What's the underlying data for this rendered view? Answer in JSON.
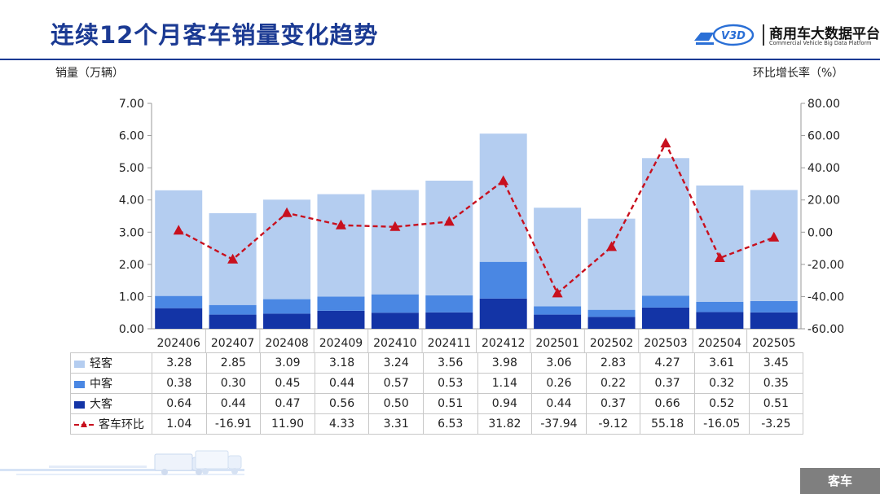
{
  "header": {
    "title": "连续12个月客车销量变化趋势",
    "logo": {
      "mark_text": "V3D",
      "name": "商用车大数据平台",
      "subtitle": "Commercial Vehicle Big Data Platform"
    }
  },
  "footer": {
    "tag": "客车"
  },
  "colors": {
    "title": "#1b3a93",
    "light": "#b4cdf0",
    "medium": "#4a87e3",
    "heavy": "#1334a6",
    "mom_line": "#c8101e",
    "tag_bg": "#7f7f7f"
  },
  "chart_data": {
    "type": "bar",
    "stacked": true,
    "ylabel": "销量（万辆）",
    "y2label": "环比增长率（%）",
    "ylim": [
      0,
      7
    ],
    "y_ticks": [
      "0.00",
      "1.00",
      "2.00",
      "3.00",
      "4.00",
      "5.00",
      "6.00",
      "7.00"
    ],
    "y2lim": [
      -60,
      80
    ],
    "y2_ticks": [
      "-60.00",
      "-40.00",
      "-20.00",
      "0.00",
      "20.00",
      "40.00",
      "60.00",
      "80.00"
    ],
    "categories": [
      "202406",
      "202407",
      "202408",
      "202409",
      "202410",
      "202411",
      "202412",
      "202501",
      "202502",
      "202503",
      "202504",
      "202505"
    ],
    "series": [
      {
        "name": "轻客",
        "kind": "bar",
        "color": "#b4cdf0",
        "values": [
          3.28,
          2.85,
          3.09,
          3.18,
          3.24,
          3.56,
          3.98,
          3.06,
          2.83,
          4.27,
          3.61,
          3.45
        ],
        "labels": [
          "3.28",
          "2.85",
          "3.09",
          "3.18",
          "3.24",
          "3.56",
          "3.98",
          "3.06",
          "2.83",
          "4.27",
          "3.61",
          "3.45"
        ]
      },
      {
        "name": "中客",
        "kind": "bar",
        "color": "#4a87e3",
        "values": [
          0.38,
          0.3,
          0.45,
          0.44,
          0.57,
          0.53,
          1.14,
          0.26,
          0.22,
          0.37,
          0.32,
          0.35
        ],
        "labels": [
          "0.38",
          "0.30",
          "0.45",
          "0.44",
          "0.57",
          "0.53",
          "1.14",
          "0.26",
          "0.22",
          "0.37",
          "0.32",
          "0.35"
        ]
      },
      {
        "name": "大客",
        "kind": "bar",
        "color": "#1334a6",
        "values": [
          0.64,
          0.44,
          0.47,
          0.56,
          0.5,
          0.51,
          0.94,
          0.44,
          0.37,
          0.66,
          0.52,
          0.51
        ],
        "labels": [
          "0.64",
          "0.44",
          "0.47",
          "0.56",
          "0.50",
          "0.51",
          "0.94",
          "0.44",
          "0.37",
          "0.66",
          "0.52",
          "0.51"
        ]
      },
      {
        "name": "客车环比",
        "kind": "line",
        "axis": "right",
        "color": "#c8101e",
        "values": [
          1.04,
          -16.91,
          11.9,
          4.33,
          3.31,
          6.53,
          31.82,
          -37.94,
          -9.12,
          55.18,
          -16.05,
          -3.25
        ],
        "labels": [
          "1.04",
          "-16.91",
          "11.90",
          "4.33",
          "3.31",
          "6.53",
          "31.82",
          "-37.94",
          "-9.12",
          "55.18",
          "-16.05",
          "-3.25"
        ]
      }
    ],
    "table_row_order": [
      0,
      1,
      2,
      3
    ],
    "grid": false,
    "legend": "data-table"
  }
}
